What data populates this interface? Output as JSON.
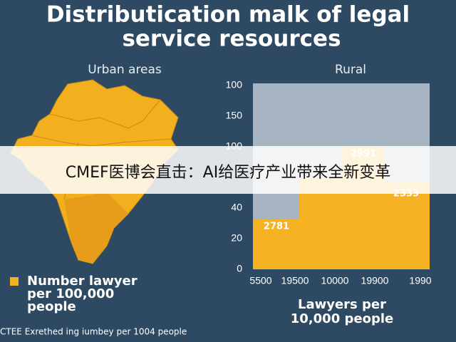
{
  "title": [
    "Distributication malk of legal",
    "service resources"
  ],
  "map_panel": {
    "label": "Urban areas",
    "legend": [
      "Number lawyer",
      "per 100,000",
      "people"
    ]
  },
  "chart_panel": {
    "label": "Rural",
    "y_labels": [
      "100",
      "150",
      "100",
      "40",
      "20",
      "0"
    ],
    "x_labels": [
      "5500",
      "19500",
      "10000",
      "19900",
      "1990"
    ],
    "bar_labels": [
      "2781",
      "2991",
      "2333"
    ],
    "axis_title": [
      "Lawyers per",
      "10,000 people"
    ]
  },
  "footnote": "CTEE Exrethed ing iumbey per 1004 people",
  "banner": "CMEF医博会直击：AI给医疗产业带来全新变革"
}
